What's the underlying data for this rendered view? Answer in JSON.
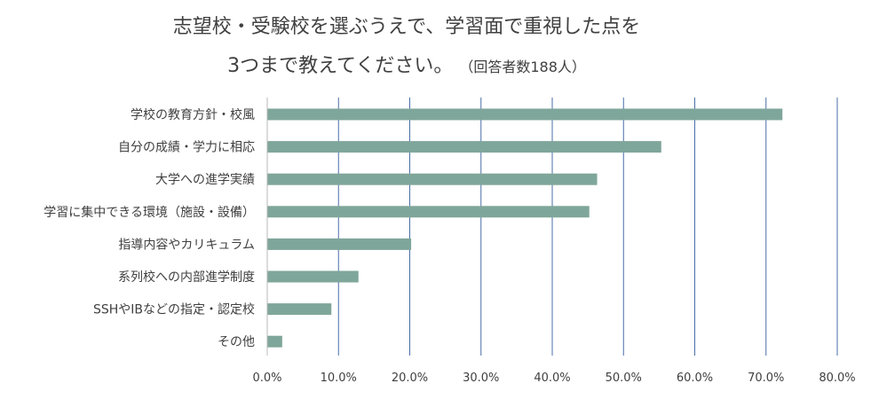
{
  "chart_data": {
    "type": "bar",
    "orientation": "horizontal",
    "title_lines": [
      "志望校・受験校を選ぶうえで、学習面で重視した点を",
      "3つまで教えてください。"
    ],
    "title_note": "（回答者数188人）",
    "categories": [
      "学校の教育方針・校風",
      "自分の成績・学力に相応",
      "大学への進学実績",
      "学習に集中できる環境（施設・設備）",
      "指導内容やカリキュラム",
      "系列校への内部進学制度",
      "SSHやIBなどの指定・認定校",
      "その他"
    ],
    "values": [
      72.3,
      55.3,
      46.3,
      45.2,
      20.2,
      12.8,
      9.0,
      2.1
    ],
    "xlim": [
      0,
      80
    ],
    "x_ticks": [
      {
        "value": 0,
        "label": "0.0%"
      },
      {
        "value": 10,
        "label": "10.0%"
      },
      {
        "value": 20,
        "label": "20.0%"
      },
      {
        "value": 30,
        "label": "30.0%"
      },
      {
        "value": 40,
        "label": "40.0%"
      },
      {
        "value": 50,
        "label": "50.0%"
      },
      {
        "value": 60,
        "label": "60.0%"
      },
      {
        "value": 70,
        "label": "70.0%"
      },
      {
        "value": 80,
        "label": "80.0%"
      }
    ],
    "grid": true,
    "legend": "none",
    "colors": {
      "bar": "#7fa69a",
      "grid": "#4a6ea8",
      "axis_baseline": "#b8b8b8",
      "text": "#404040"
    }
  }
}
